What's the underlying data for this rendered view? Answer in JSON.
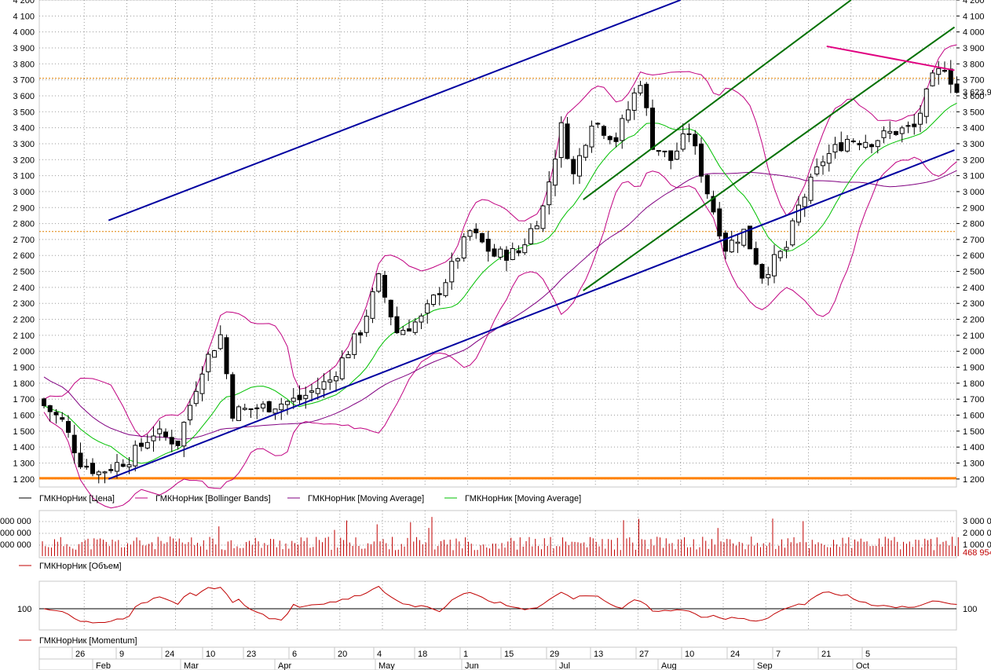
{
  "chart_data": [
    {
      "type": "candlestick",
      "instrument": "ГМКНорНик",
      "ylim": [
        1150,
        4200
      ],
      "y_ticks": [
        1200,
        1300,
        1400,
        1500,
        1600,
        1700,
        1800,
        1900,
        2000,
        2100,
        2200,
        2300,
        2400,
        2500,
        2600,
        2700,
        2800,
        2900,
        3000,
        3100,
        3200,
        3300,
        3400,
        3500,
        3600,
        3700,
        3800,
        3900,
        4000,
        4100,
        4200
      ],
      "y_tick_labels": [
        "1 200",
        "1 300",
        "1 400",
        "1 500",
        "1 600",
        "1 700",
        "1 800",
        "1 900",
        "2 000",
        "2 100",
        "2 200",
        "2 300",
        "2 400",
        "2 500",
        "2 600",
        "2 700",
        "2 800",
        "2 900",
        "3 000",
        "3 100",
        "3 200",
        "3 300",
        "3 400",
        "3 500",
        "3 600",
        "3 700",
        "3 800",
        "3 900",
        "4 000",
        "4 100",
        "4 200"
      ],
      "last_price_label": "3 623,9",
      "last_price": 3623.9,
      "reference_lines": [
        {
          "value": 1205,
          "color": "#ff8000",
          "style": "solid"
        },
        {
          "value": 2750,
          "color": "#e08000",
          "style": "dotted"
        },
        {
          "value": 3710,
          "color": "#e08000",
          "style": "dotted"
        }
      ],
      "x_day_labels": [
        "26",
        "9",
        "24",
        "10",
        "23",
        "6",
        "20",
        "4",
        "18",
        "1",
        "15",
        "29",
        "13",
        "27",
        "10",
        "24",
        "7",
        "21",
        "5"
      ],
      "x_month_labels": [
        "Feb",
        "Mar",
        "Apr",
        "May",
        "Jun",
        "Jul",
        "Aug",
        "Sep",
        "Oct"
      ],
      "trend_lines": [
        {
          "color": "#0000a0",
          "from": {
            "bar": 11,
            "price": 1200
          },
          "to": {
            "bar": 150,
            "price": 3260
          }
        },
        {
          "color": "#0000a0",
          "from": {
            "bar": 11,
            "price": 2820
          },
          "to": {
            "bar": 105,
            "price": 4200
          }
        },
        {
          "color": "#007000",
          "from": {
            "bar": 89,
            "price": 2380
          },
          "to": {
            "bar": 150,
            "price": 4030
          }
        },
        {
          "color": "#007000",
          "from": {
            "bar": 89,
            "price": 2950
          },
          "to": {
            "bar": 133,
            "price": 4200
          }
        },
        {
          "color": "#e00080",
          "from": {
            "bar": 129,
            "price": 3910
          },
          "to": {
            "bar": 150,
            "price": 3760
          }
        }
      ],
      "legend": [
        {
          "label": "ГМКНорНик [Цена]",
          "color": "#000000"
        },
        {
          "label": "ГМКНорНик [Bollinger Bands]",
          "color": "#c00080"
        },
        {
          "label": "ГМКНорНик [Moving Average]",
          "color": "#800080"
        },
        {
          "label": "ГМКНорНик [Moving Average]",
          "color": "#00c000"
        }
      ],
      "key_closes": [
        {
          "bar": 0,
          "close": 1660
        },
        {
          "bar": 3,
          "close": 1560
        },
        {
          "bar": 6,
          "close": 1310
        },
        {
          "bar": 9,
          "close": 1240
        },
        {
          "bar": 14,
          "close": 1330
        },
        {
          "bar": 18,
          "close": 1490
        },
        {
          "bar": 22,
          "close": 1430
        },
        {
          "bar": 26,
          "close": 1900
        },
        {
          "bar": 29,
          "close": 2100
        },
        {
          "bar": 31,
          "close": 1620
        },
        {
          "bar": 36,
          "close": 1650
        },
        {
          "bar": 42,
          "close": 1700
        },
        {
          "bar": 47,
          "close": 1820
        },
        {
          "bar": 52,
          "close": 2130
        },
        {
          "bar": 55,
          "close": 2450
        },
        {
          "bar": 58,
          "close": 2120
        },
        {
          "bar": 62,
          "close": 2200
        },
        {
          "bar": 66,
          "close": 2450
        },
        {
          "bar": 70,
          "close": 2750
        },
        {
          "bar": 74,
          "close": 2600
        },
        {
          "bar": 78,
          "close": 2620
        },
        {
          "bar": 82,
          "close": 2900
        },
        {
          "bar": 85,
          "close": 3400
        },
        {
          "bar": 87,
          "close": 3100
        },
        {
          "bar": 90,
          "close": 3450
        },
        {
          "bar": 94,
          "close": 3330
        },
        {
          "bar": 98,
          "close": 3700
        },
        {
          "bar": 100,
          "close": 3300
        },
        {
          "bar": 103,
          "close": 3200
        },
        {
          "bar": 106,
          "close": 3380
        },
        {
          "bar": 109,
          "close": 3000
        },
        {
          "bar": 112,
          "close": 2650
        },
        {
          "bar": 115,
          "close": 2750
        }
      ]
    },
    {
      "type": "bar",
      "title": "ГМКНорНик [Объем]",
      "legend_color": "#c00000",
      "y_ticks_right": [
        "3 000 0",
        "2 000 0",
        "1 000 0"
      ],
      "y_ticks_left": [
        "000 000",
        "000 000",
        "000 000"
      ],
      "last_value_label": "468 954"
    },
    {
      "type": "line",
      "title": "ГМКНорНик [Momentum]",
      "legend_color": "#c00000",
      "baseline_label": "100",
      "baseline": 100
    }
  ]
}
